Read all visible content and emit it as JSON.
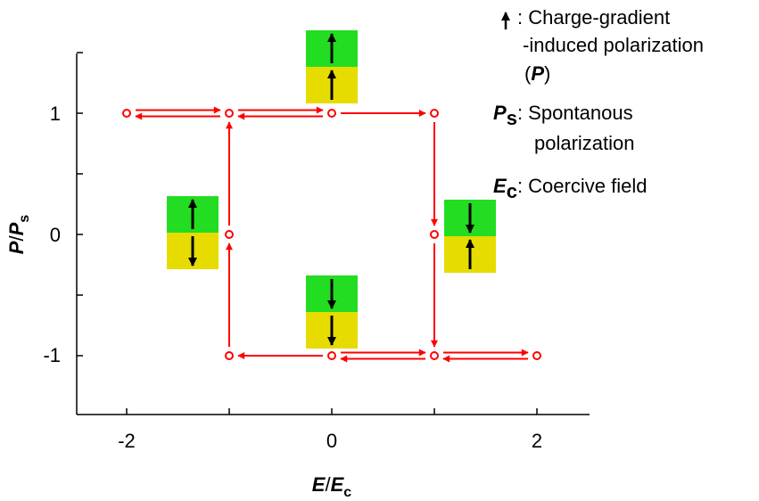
{
  "chart_data": {
    "type": "scatter",
    "x_label": {
      "main": "E",
      "sub": "E",
      "sub_subscript": "c"
    },
    "y_label": {
      "main": "P",
      "sub": "P",
      "sub_subscript": "s"
    },
    "x_ticks": [
      "-2",
      "0",
      "2"
    ],
    "y_ticks": [
      "1",
      "0",
      "-1"
    ],
    "xlim": [
      -2.5,
      2.5
    ],
    "ylim": [
      -1.5,
      1.5
    ],
    "points": [
      {
        "x": -2,
        "y": 1
      },
      {
        "x": -1,
        "y": 1
      },
      {
        "x": 0,
        "y": 1
      },
      {
        "x": 1,
        "y": 1
      },
      {
        "x": -1,
        "y": 0
      },
      {
        "x": 1,
        "y": 0
      },
      {
        "x": -1,
        "y": -1
      },
      {
        "x": 0,
        "y": -1
      },
      {
        "x": 1,
        "y": -1
      },
      {
        "x": 2,
        "y": -1
      }
    ],
    "transitions": [
      {
        "from": [
          -2,
          1
        ],
        "to": [
          -1,
          1
        ],
        "double": true
      },
      {
        "from": [
          -1,
          1
        ],
        "to": [
          0,
          1
        ],
        "double": true
      },
      {
        "from": [
          0,
          1
        ],
        "to": [
          1,
          1
        ],
        "double": false
      },
      {
        "from": [
          1,
          1
        ],
        "to": [
          1,
          0
        ],
        "double": false
      },
      {
        "from": [
          1,
          0
        ],
        "to": [
          1,
          -1
        ],
        "double": false
      },
      {
        "from": [
          0,
          -1
        ],
        "to": [
          1,
          -1
        ],
        "double": true
      },
      {
        "from": [
          1,
          -1
        ],
        "to": [
          2,
          -1
        ],
        "double": true
      },
      {
        "from": [
          0,
          -1
        ],
        "to": [
          -1,
          -1
        ],
        "double": false
      },
      {
        "from": [
          -1,
          -1
        ],
        "to": [
          -1,
          0
        ],
        "double": false
      },
      {
        "from": [
          -1,
          0
        ],
        "to": [
          -1,
          1
        ],
        "double": false
      }
    ],
    "domain_insets": [
      {
        "x": 0,
        "y": 1,
        "top_arrow": "up",
        "bottom_arrow": "up"
      },
      {
        "x": -1,
        "y": 0,
        "top_arrow": "up",
        "bottom_arrow": "down"
      },
      {
        "x": 1,
        "y": 0,
        "top_arrow": "down",
        "bottom_arrow": "up"
      },
      {
        "x": 0,
        "y": -1,
        "top_arrow": "down",
        "bottom_arrow": "down"
      }
    ],
    "colors": {
      "marker": "#ff0000",
      "arrow": "#ff0000",
      "top_layer": "#22dd22",
      "bottom_layer": "#e6dc00",
      "axis": "#000000"
    }
  },
  "legend": {
    "item1": {
      "line1": ": Charge-gradient",
      "line2": "-induced polarization",
      "line3_open": "(",
      "line3_symbol": "P",
      "line3_close": ")"
    },
    "item2": {
      "symbol": "P",
      "subscript": "s",
      "line1": ": Spontanous",
      "line2": "polarization"
    },
    "item3": {
      "symbol": "E",
      "subscript": "c",
      "text": ": Coercive field"
    }
  }
}
